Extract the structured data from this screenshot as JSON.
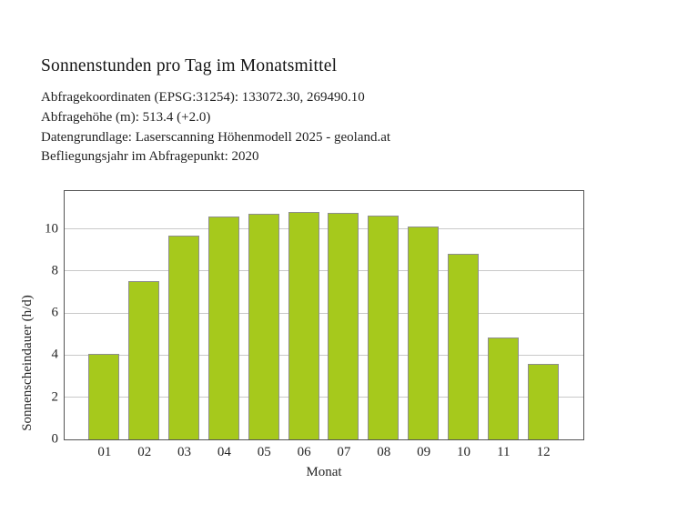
{
  "header": {
    "title": "Sonnenstunden pro Tag im Monatsmittel",
    "info_lines": [
      "Abfragekoordinaten (EPSG:31254): 133072.30, 269490.10",
      "Abfragehöhe (m): 513.4 (+2.0)",
      "Datengrundlage: Laserscanning Höhenmodell 2025 - geoland.at",
      "Befliegungsjahr im Abfragepunkt: 2020"
    ]
  },
  "chart_data": {
    "type": "bar",
    "title": "Sonnenstunden pro Tag im Monatsmittel",
    "categories": [
      "01",
      "02",
      "03",
      "04",
      "05",
      "06",
      "07",
      "08",
      "09",
      "10",
      "11",
      "12"
    ],
    "values": [
      4.05,
      7.5,
      9.65,
      10.55,
      10.7,
      10.8,
      10.75,
      10.6,
      10.1,
      8.8,
      4.8,
      3.55
    ],
    "xlabel": "Monat",
    "ylabel": "Sonnenscheindauer (h/d)",
    "ylim": [
      0,
      11.8
    ],
    "yticks": [
      0,
      2,
      4,
      6,
      8,
      10
    ],
    "grid": true,
    "legend": false,
    "bar_color": "#a6c91c",
    "bar_edge_color": "#8e8e8e",
    "grid_color": "#c9c9c9",
    "axis_color": "#545454"
  }
}
